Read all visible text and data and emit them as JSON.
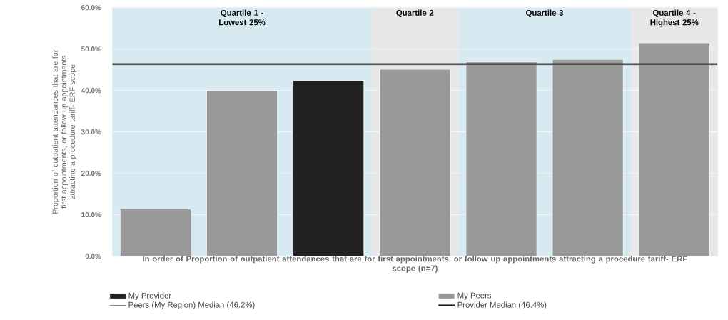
{
  "chart_data": {
    "type": "bar",
    "ylabel": "Proportion of outpatient attendances that are for first appointments, or follow up appointments attracting a procedure tariff- ERF scope",
    "xlabel": "In order of Proportion of outpatient attendances that are for first appointments, or follow up appointments attracting a procedure tariff- ERF scope (n=7)",
    "categories": [
      null,
      null,
      null,
      null,
      null,
      null,
      null
    ],
    "series": [
      {
        "name": "My Provider",
        "color": "#222222",
        "values": [
          null,
          null,
          42.4,
          null,
          null,
          null,
          null
        ]
      },
      {
        "name": "My Peers",
        "color": "#999999",
        "values": [
          11.4,
          40.0,
          null,
          45.1,
          46.9,
          47.5,
          51.5
        ]
      }
    ],
    "ylim": [
      0,
      60
    ],
    "yticks": [
      {
        "value": 0,
        "label": "0.0%"
      },
      {
        "value": 10,
        "label": "10.0%"
      },
      {
        "value": 20,
        "label": "20.0%"
      },
      {
        "value": 30,
        "label": "30.0%"
      },
      {
        "value": 40,
        "label": "40.0%"
      },
      {
        "value": 50,
        "label": "50.0%"
      },
      {
        "value": 60,
        "label": "60.0%"
      }
    ],
    "tick_labels": "y",
    "grid": "y",
    "legend": "bottom",
    "ref_lines": [
      {
        "axis": "y",
        "value": 46.2,
        "label": "Peers (My Region) Median (46.2%)",
        "color": "#888888"
      },
      {
        "axis": "y",
        "value": 46.4,
        "label": "Provider Median (46.4%)",
        "color": "#111111"
      }
    ],
    "annotations": [
      "Quartile 1 - Lowest 25%",
      "Quartile 2",
      "Quartile 3",
      "Quartile 4 - Highest 25%"
    ]
  }
}
